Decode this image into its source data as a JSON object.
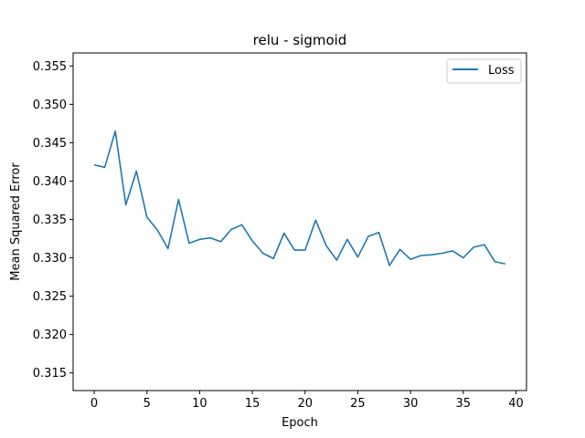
{
  "chart_data": {
    "type": "line",
    "title": "relu - sigmoid",
    "xlabel": "Epoch",
    "ylabel": "Mean Squared Error",
    "xlim": [
      -2,
      41
    ],
    "ylim": [
      0.3127,
      0.3567
    ],
    "xticks": [
      0,
      5,
      10,
      15,
      20,
      25,
      30,
      35,
      40
    ],
    "yticks": [
      0.315,
      0.32,
      0.325,
      0.33,
      0.335,
      0.34,
      0.345,
      0.35,
      0.355
    ],
    "ytick_labels": [
      "0.315",
      "0.320",
      "0.325",
      "0.330",
      "0.335",
      "0.340",
      "0.345",
      "0.350",
      "0.355"
    ],
    "grid": false,
    "legend_position": "top-right",
    "series": [
      {
        "name": "Loss",
        "color": "#1f77b4",
        "x": [
          0,
          1,
          2,
          3,
          4,
          5,
          6,
          7,
          8,
          9,
          10,
          11,
          12,
          13,
          14,
          15,
          16,
          17,
          18,
          19,
          20,
          21,
          22,
          23,
          24,
          25,
          26,
          27,
          28,
          29,
          30,
          31,
          32,
          33,
          34,
          35,
          36,
          37,
          38,
          39
        ],
        "y": [
          0.3421,
          0.3418,
          0.3465,
          0.3369,
          0.3413,
          0.3353,
          0.3336,
          0.3312,
          0.3376,
          0.3319,
          0.3324,
          0.3326,
          0.3321,
          0.3337,
          0.3343,
          0.3322,
          0.3306,
          0.3299,
          0.3332,
          0.331,
          0.331,
          0.3349,
          0.3316,
          0.3297,
          0.3324,
          0.3301,
          0.3328,
          0.3333,
          0.329,
          0.3311,
          0.3298,
          0.3303,
          0.3304,
          0.3306,
          0.3309,
          0.33,
          0.3314,
          0.3317,
          0.3295,
          0.3292
        ]
      }
    ]
  }
}
